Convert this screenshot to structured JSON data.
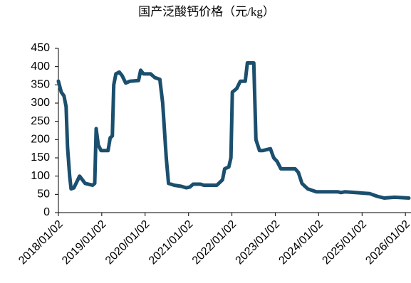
{
  "chart_data": {
    "type": "line",
    "title": "国产泛酸钙价格（元/kg）",
    "x": [
      "2018/01/02",
      "2018/01/26",
      "2018/02/18",
      "2018/03/08",
      "2018/03/20",
      "2018/04/07",
      "2018/04/19",
      "2018/05/13",
      "2018/06/29",
      "2018/08/15",
      "2018/10/17",
      "2018/11/04",
      "2018/11/16",
      "2018/12/04",
      "2018/12/27",
      "2019/02/24",
      "2019/03/14",
      "2019/04/01",
      "2019/04/13",
      "2019/05/01",
      "2019/05/30",
      "2019/06/23",
      "2019/07/23",
      "2019/08/28",
      "2019/11/08",
      "2019/11/26",
      "2019/12/19",
      "2020/02/17",
      "2020/03/24",
      "2020/05/05",
      "2020/05/29",
      "2020/06/28",
      "2020/07/17",
      "2020/09/03",
      "2020/11/01",
      "2020/12/14",
      "2021/01/12",
      "2021/02/10",
      "2021/04/12",
      "2021/05/11",
      "2021/08/28",
      "2021/10/15",
      "2021/11/02",
      "2021/12/07",
      "2021/12/25",
      "2022/01/06",
      "2022/02/11",
      "2022/03/14",
      "2022/04/24",
      "2022/05/12",
      "2022/07/05",
      "2022/07/23",
      "2022/08/22",
      "2022/09/20",
      "2022/11/22",
      "2022/12/20",
      "2023/01/18",
      "2023/02/18",
      "2023/06/18",
      "2023/07/16",
      "2023/08/15",
      "2023/10/02",
      "2023/12/14",
      "2024/06/10",
      "2024/07/09",
      "2024/08/11",
      "2024/11/07",
      "2025/03/08",
      "2025/05/06",
      "2025/07/07",
      "2025/10/03",
      "2026/01/31"
    ],
    "series": [
      {
        "name": "国产泛酸钙价格",
        "color": "#1b4f6e",
        "values": [
          360,
          330,
          320,
          290,
          180,
          100,
          65,
          68,
          100,
          80,
          75,
          80,
          230,
          185,
          170,
          170,
          205,
          210,
          350,
          380,
          385,
          375,
          355,
          360,
          362,
          390,
          380,
          380,
          370,
          365,
          300,
          150,
          80,
          75,
          72,
          68,
          70,
          78,
          78,
          75,
          75,
          90,
          120,
          125,
          150,
          330,
          340,
          360,
          360,
          410,
          410,
          200,
          170,
          170,
          175,
          150,
          140,
          120,
          120,
          110,
          80,
          65,
          57,
          57,
          55,
          57,
          55,
          52,
          45,
          40,
          42,
          40
        ]
      }
    ],
    "xlim": [
      "2018/01/02",
      "2026/02/18"
    ],
    "xticks": [
      "2018/01/02",
      "2019/01/02",
      "2020/01/02",
      "2021/01/02",
      "2022/01/02",
      "2023/01/02",
      "2024/01/02",
      "2025/01/02",
      "2026/01/02"
    ],
    "ylim": [
      0,
      450
    ],
    "yticks": [
      0,
      50,
      100,
      150,
      200,
      250,
      300,
      350,
      400,
      450
    ],
    "grid": false
  }
}
